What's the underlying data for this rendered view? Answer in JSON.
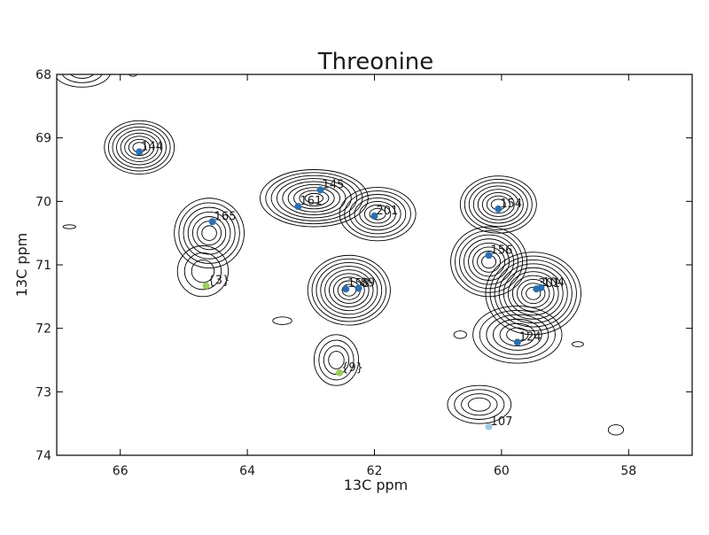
{
  "chart_data": {
    "type": "scatter",
    "title": "Threonine",
    "xlabel": "13C ppm",
    "ylabel": "13C ppm",
    "xlim": [
      67,
      57
    ],
    "ylim": [
      74,
      68
    ],
    "x_reversed": true,
    "y_reversed": true,
    "xticks": [
      66,
      64,
      62,
      60,
      58
    ],
    "yticks": [
      68,
      69,
      70,
      71,
      72,
      73,
      74
    ],
    "grid": false,
    "legend": "none",
    "colors": {
      "assigned": "#2a6fb0",
      "tentative": "#9acd5a",
      "weak": "#9ec9e6",
      "contour": "#000000"
    },
    "points": [
      {
        "label": "144",
        "x": 65.7,
        "y": 69.22,
        "color": "#2a6fb0"
      },
      {
        "label": "145",
        "x": 62.85,
        "y": 69.82,
        "color": "#2a6fb0"
      },
      {
        "label": "161",
        "x": 63.2,
        "y": 70.08,
        "color": "#2a6fb0"
      },
      {
        "label": "201",
        "x": 62.0,
        "y": 70.23,
        "color": "#2a6fb0"
      },
      {
        "label": "165",
        "x": 64.55,
        "y": 70.32,
        "color": "#2a6fb0"
      },
      {
        "label": "{3}",
        "x": 64.65,
        "y": 71.33,
        "color": "#9acd5a"
      },
      {
        "label": "158",
        "x": 62.45,
        "y": 71.38,
        "color": "#2a6fb0"
      },
      {
        "label": "89",
        "x": 62.25,
        "y": 71.37,
        "color": "#2a6fb0"
      },
      {
        "label": "{9}",
        "x": 62.55,
        "y": 72.7,
        "color": "#9acd5a"
      },
      {
        "label": "154",
        "x": 60.05,
        "y": 70.12,
        "color": "#2a6fb0"
      },
      {
        "label": "156",
        "x": 60.2,
        "y": 70.85,
        "color": "#2a6fb0"
      },
      {
        "label": "301",
        "x": 59.45,
        "y": 71.38,
        "color": "#2a6fb0"
      },
      {
        "label": "104",
        "x": 59.38,
        "y": 71.36,
        "color": "#2a6fb0"
      },
      {
        "label": "124",
        "x": 59.75,
        "y": 72.22,
        "color": "#2a6fb0"
      },
      {
        "label": "107",
        "x": 60.2,
        "y": 73.55,
        "color": "#9ec9e6"
      }
    ],
    "contour_peaks": [
      {
        "x": 65.7,
        "y": 69.15,
        "rx": 0.55,
        "ry": 0.42,
        "levels": 8
      },
      {
        "x": 64.6,
        "y": 70.5,
        "rx": 0.55,
        "ry": 0.55,
        "levels": 7
      },
      {
        "x": 64.7,
        "y": 71.1,
        "rx": 0.4,
        "ry": 0.4,
        "levels": 3
      },
      {
        "x": 62.95,
        "y": 69.95,
        "rx": 0.85,
        "ry": 0.45,
        "levels": 9
      },
      {
        "x": 61.95,
        "y": 70.2,
        "rx": 0.6,
        "ry": 0.42,
        "levels": 7
      },
      {
        "x": 62.4,
        "y": 71.4,
        "rx": 0.65,
        "ry": 0.55,
        "levels": 9
      },
      {
        "x": 62.6,
        "y": 72.5,
        "rx": 0.35,
        "ry": 0.4,
        "levels": 4
      },
      {
        "x": 60.05,
        "y": 70.05,
        "rx": 0.6,
        "ry": 0.45,
        "levels": 8
      },
      {
        "x": 60.2,
        "y": 70.95,
        "rx": 0.6,
        "ry": 0.55,
        "levels": 8
      },
      {
        "x": 59.5,
        "y": 71.45,
        "rx": 0.75,
        "ry": 0.65,
        "levels": 10
      },
      {
        "x": 59.75,
        "y": 72.1,
        "rx": 0.7,
        "ry": 0.45,
        "levels": 6
      },
      {
        "x": 60.35,
        "y": 73.2,
        "rx": 0.5,
        "ry": 0.3,
        "levels": 4
      },
      {
        "x": 66.6,
        "y": 67.95,
        "rx": 0.45,
        "ry": 0.25,
        "levels": 3
      },
      {
        "x": 60.65,
        "y": 72.1,
        "rx": 0.1,
        "ry": 0.06,
        "levels": 1
      },
      {
        "x": 58.8,
        "y": 72.25,
        "rx": 0.09,
        "ry": 0.04,
        "levels": 1
      },
      {
        "x": 58.2,
        "y": 73.6,
        "rx": 0.12,
        "ry": 0.08,
        "levels": 1
      },
      {
        "x": 63.45,
        "y": 71.88,
        "rx": 0.15,
        "ry": 0.06,
        "levels": 1
      },
      {
        "x": 65.8,
        "y": 68.0,
        "rx": 0.06,
        "ry": 0.03,
        "levels": 1
      },
      {
        "x": 66.8,
        "y": 70.4,
        "rx": 0.1,
        "ry": 0.03,
        "levels": 1
      }
    ]
  }
}
